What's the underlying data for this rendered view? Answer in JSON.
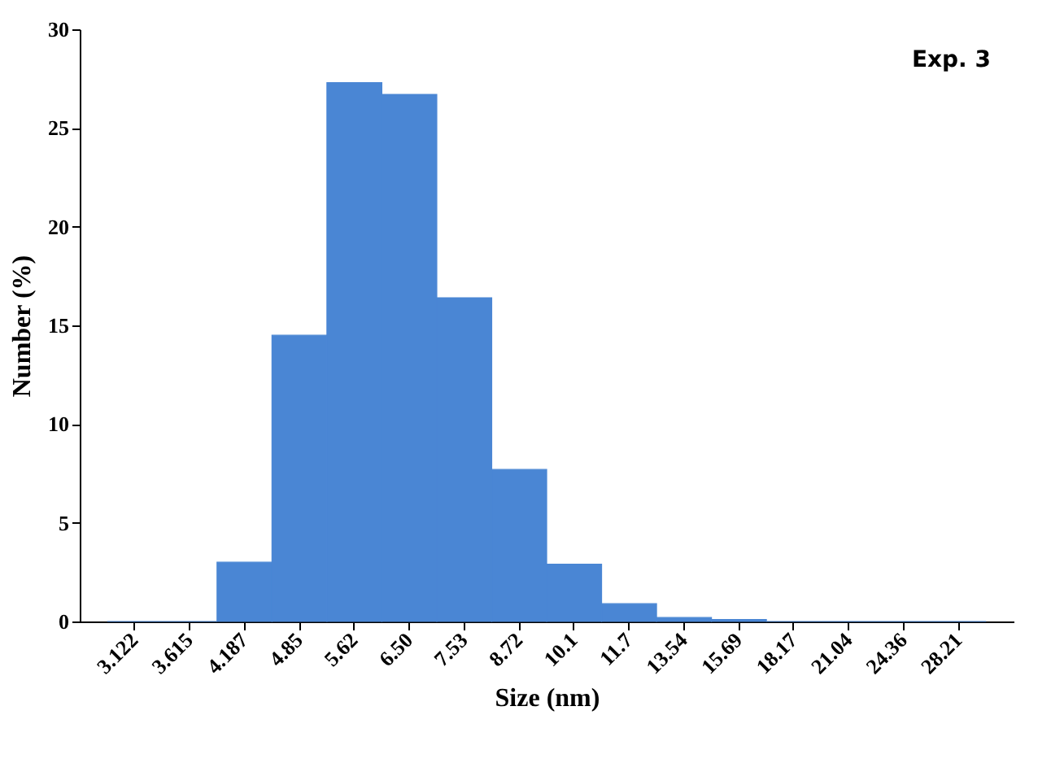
{
  "chart_data": {
    "type": "bar",
    "xlabel": "Size (nm)",
    "ylabel": "Number (%)",
    "categories": [
      "3.122",
      "3.615",
      "4.187",
      "4.85",
      "5.62",
      "6.50",
      "7.53",
      "8.72",
      "10.1",
      "11.7",
      "13.54",
      "15.69",
      "18.17",
      "21.04",
      "24.36",
      "28.21"
    ],
    "values": [
      0,
      0,
      3.0,
      14.5,
      27.3,
      26.7,
      16.4,
      7.7,
      2.9,
      0.9,
      0.2,
      0.1,
      0,
      0,
      0,
      0
    ],
    "color": "#4a86d4",
    "ylim": [
      0,
      30
    ],
    "yticks": [
      0,
      5,
      10,
      15,
      20,
      25,
      30
    ],
    "grid": false,
    "annotations": [
      "Exp. 3"
    ]
  }
}
